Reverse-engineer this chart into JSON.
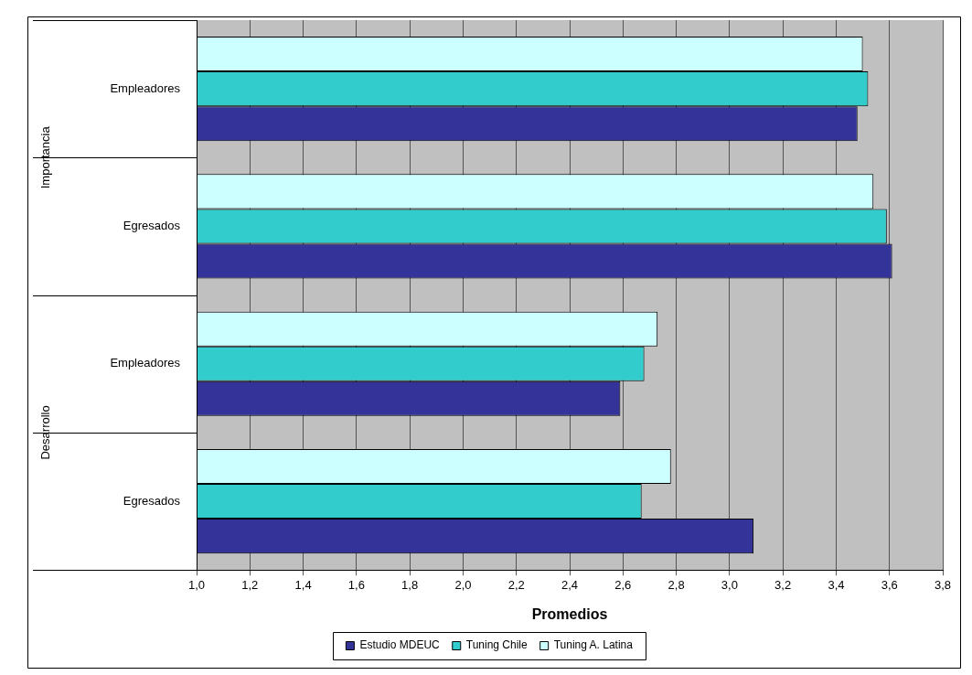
{
  "chart_data": {
    "type": "bar",
    "orientation": "horizontal",
    "categories": [
      "Empleadores",
      "Egresados",
      "Empleadores",
      "Egresados"
    ],
    "series": [
      {
        "name": "Estudio MDEUC",
        "color": "#333399",
        "values": [
          3.48,
          3.61,
          2.59,
          3.09
        ]
      },
      {
        "name": "Tuning Chile",
        "color": "#33cccc",
        "values": [
          3.52,
          3.59,
          2.68,
          2.67
        ]
      },
      {
        "name": "Tuning A. Latina",
        "color": "#ccffff",
        "values": [
          3.5,
          3.54,
          2.73,
          2.78
        ]
      }
    ],
    "xlabel": "Promedios",
    "xlim": [
      1.0,
      3.8
    ],
    "xticks": [
      {
        "value": 1.0,
        "label": "1,0"
      },
      {
        "value": 1.2,
        "label": "1,2"
      },
      {
        "value": 1.4,
        "label": "1,4"
      },
      {
        "value": 1.6,
        "label": "1,6"
      },
      {
        "value": 1.8,
        "label": "1,8"
      },
      {
        "value": 2.0,
        "label": "2,0"
      },
      {
        "value": 2.2,
        "label": "2,2"
      },
      {
        "value": 2.4,
        "label": "2,4"
      },
      {
        "value": 2.6,
        "label": "2,6"
      },
      {
        "value": 2.8,
        "label": "2,8"
      },
      {
        "value": 3.0,
        "label": "3,0"
      },
      {
        "value": 3.2,
        "label": "3,2"
      },
      {
        "value": 3.4,
        "label": "3,4"
      },
      {
        "value": 3.6,
        "label": "3,6"
      },
      {
        "value": 3.8,
        "label": "3,8"
      }
    ],
    "annotations": [
      "Importancia",
      "Desarrollo"
    ],
    "grid": "x",
    "legend": "bottom"
  }
}
